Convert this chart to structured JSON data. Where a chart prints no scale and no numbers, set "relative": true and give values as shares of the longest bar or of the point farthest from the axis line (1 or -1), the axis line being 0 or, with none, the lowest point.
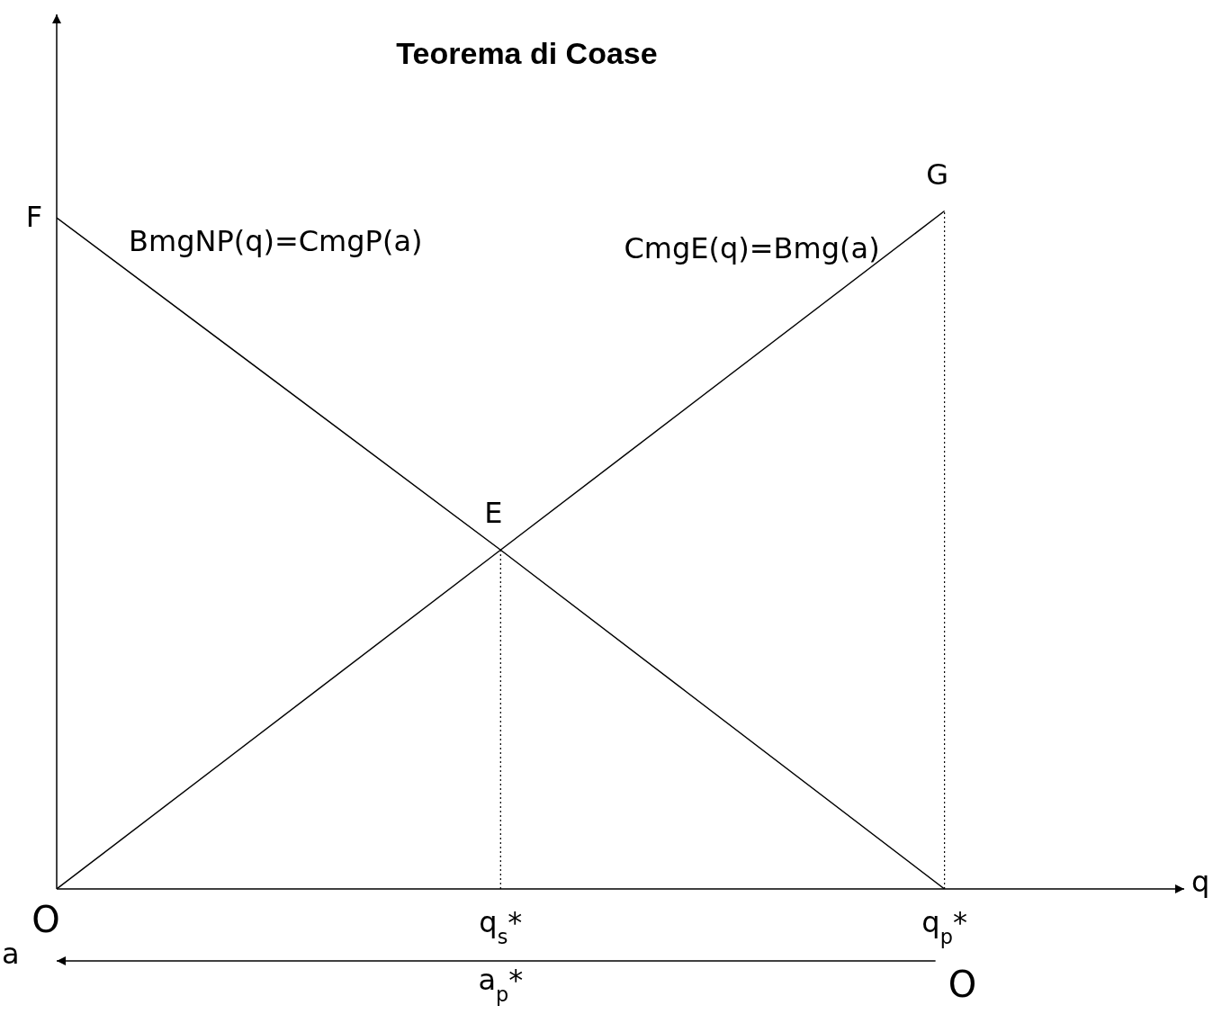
{
  "chart_data": {
    "type": "line",
    "title": "Teorema di Coase",
    "xlabel": "q",
    "x2label": "a",
    "relative": true,
    "line_style": "solid",
    "tick_labels": "x",
    "categories": [
      "O",
      "q$_{s}$*",
      "q$_{p}$*"
    ],
    "series": [
      {
        "name": "BmgNP(q)=CmgP(a)",
        "color": "#000000",
        "values": [
          0.99,
          0.5,
          0
        ]
      },
      {
        "name": "CmgE(q)=Bmg(a)",
        "color": "#000000",
        "values": [
          0,
          0.5,
          1
        ]
      }
    ],
    "ref_lines": [
      {
        "axis": "x",
        "value": "q$_{s}$*",
        "color": "#000000",
        "line_style": "dotted"
      },
      {
        "axis": "x",
        "value": "q$_{p}$*",
        "color": "#000000",
        "line_style": "dotted"
      }
    ],
    "annotations": [
      {
        "text": "F",
        "x": "O",
        "y": 0.99
      },
      {
        "text": "E",
        "x": "q$_{s}$*",
        "y": 0.5
      },
      {
        "text": "G",
        "x": "q$_{p}$*",
        "y": 1
      },
      "a$_{p}$*",
      "O"
    ]
  }
}
